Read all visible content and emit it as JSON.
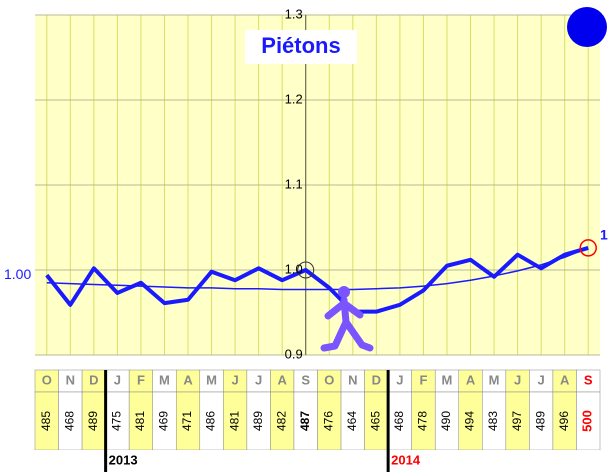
{
  "chart_data": {
    "type": "line",
    "title": "Piétons",
    "categories": [
      "O",
      "N",
      "D",
      "J",
      "F",
      "M",
      "A",
      "M",
      "J",
      "J",
      "A",
      "S",
      "O",
      "N",
      "D",
      "J",
      "F",
      "M",
      "A",
      "M",
      "J",
      "J",
      "A",
      "S"
    ],
    "counts": [
      485,
      468,
      489,
      475,
      481,
      469,
      471,
      486,
      481,
      489,
      482,
      487,
      476,
      464,
      465,
      468,
      478,
      490,
      494,
      483,
      497,
      489,
      496,
      500
    ],
    "years": [
      {
        "label": "2013",
        "start": 3
      },
      {
        "label": "2014",
        "start": 15,
        "color": "#ff0000"
      }
    ],
    "bold_columns": [
      11
    ],
    "red_columns": [
      23
    ],
    "series": [
      {
        "color": "#1a1aff",
        "width": 4,
        "values": [
          0.994,
          0.959,
          1.002,
          0.973,
          0.985,
          0.961,
          0.965,
          0.998,
          0.988,
          1.002,
          0.988,
          1.0,
          0.979,
          0.951,
          0.951,
          0.959,
          0.976,
          1.005,
          1.012,
          0.992,
          1.018,
          1.002,
          1.018,
          1.026
        ]
      },
      {
        "color": "#1a1aff",
        "width": 1.5,
        "values": [
          0.985,
          0.984,
          0.983,
          0.982,
          0.981,
          0.98,
          0.979,
          0.979,
          0.978,
          0.978,
          0.977,
          0.977,
          0.977,
          0.977,
          0.978,
          0.979,
          0.981,
          0.984,
          0.988,
          0.993,
          0.999,
          1.006,
          1.015,
          1.026
        ]
      }
    ],
    "annotations": [
      "1.00",
      "1"
    ],
    "ylim": [
      0.9,
      1.3
    ],
    "yticks": [
      0.9,
      {
        "value": 1,
        "label": "1.0"
      },
      1.1,
      1.2,
      1.3
    ],
    "grid": true
  }
}
